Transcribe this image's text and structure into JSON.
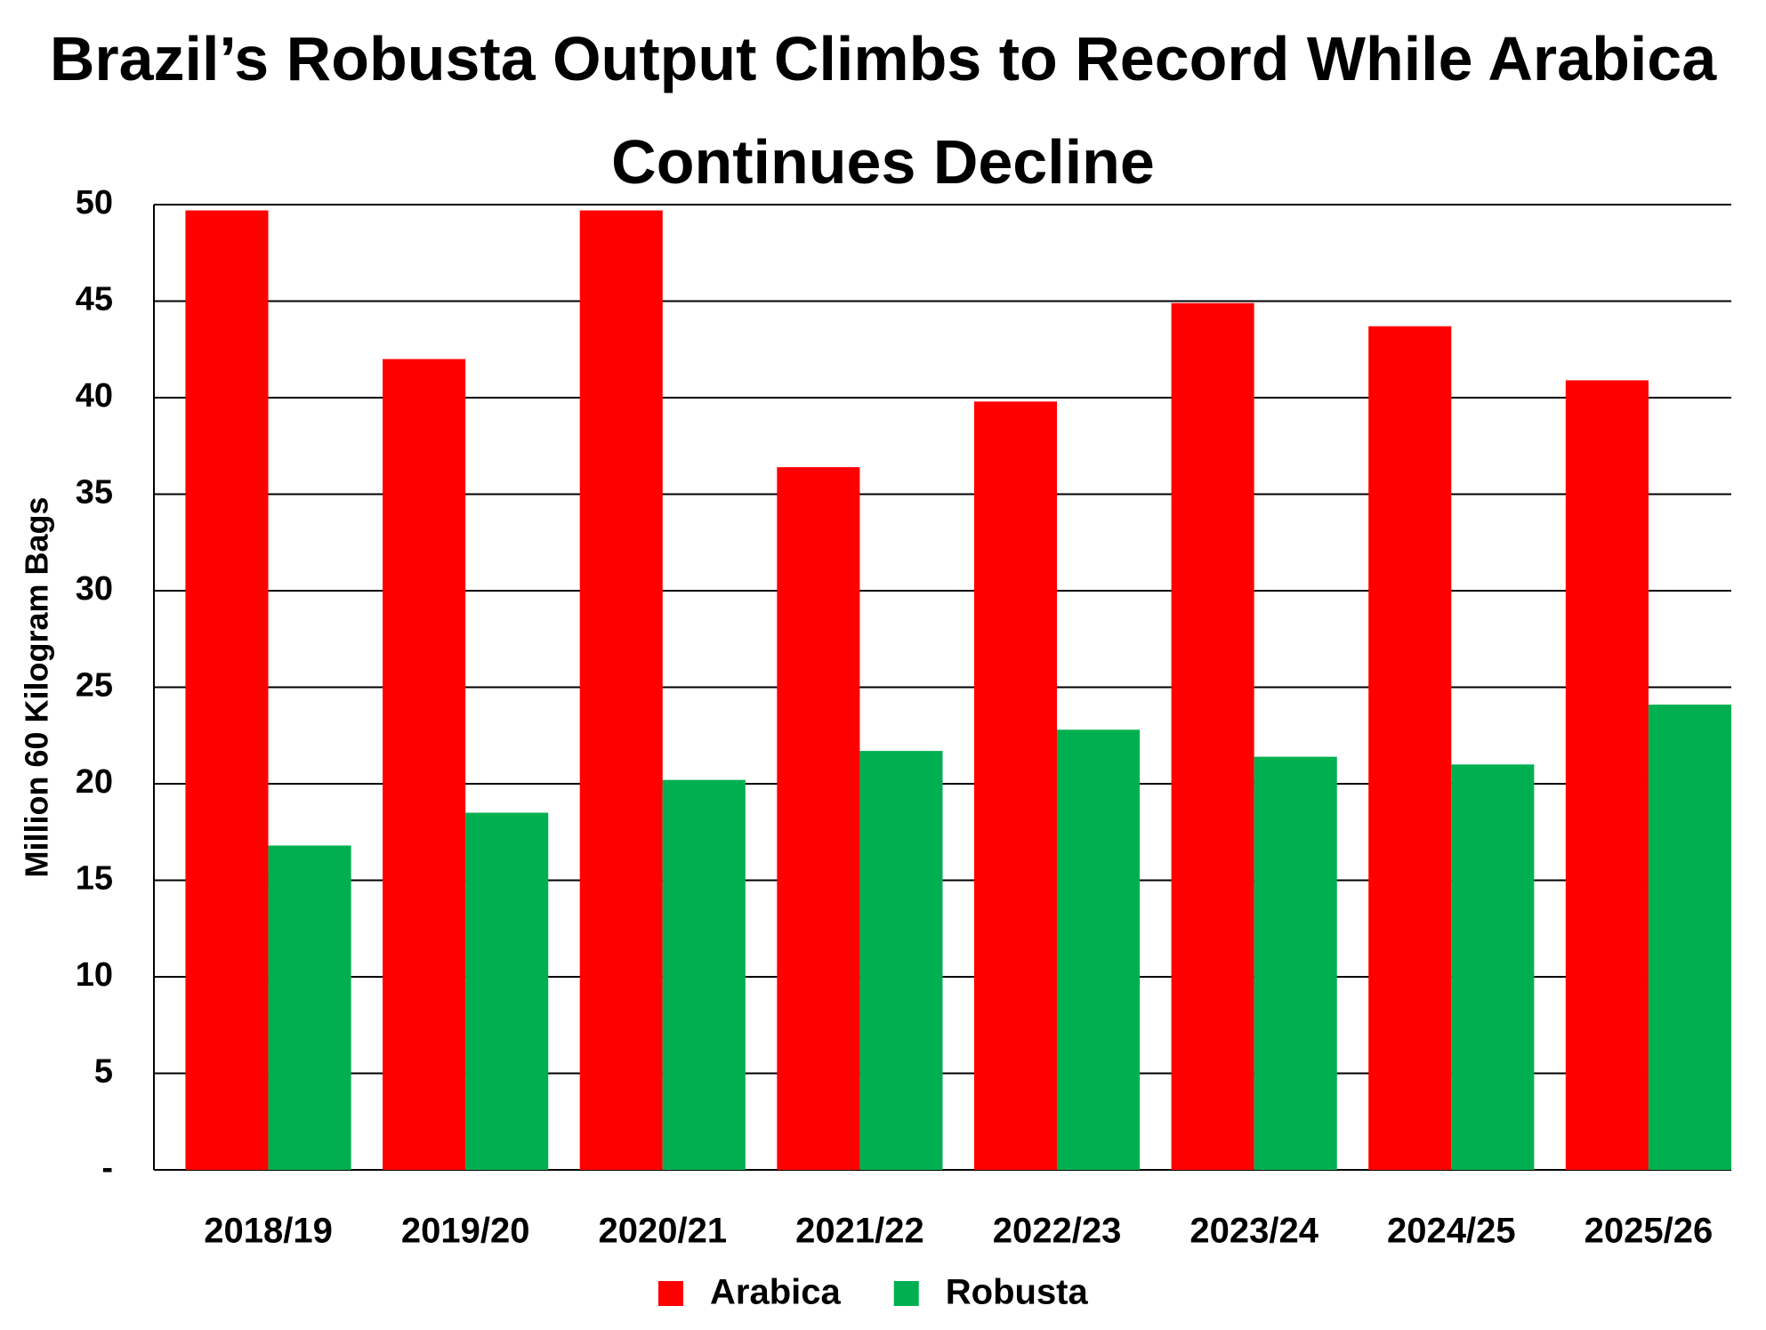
{
  "chart_data": {
    "type": "bar",
    "title": "Brazil’s Robusta Output Climbs to Record While Arabica Continues Decline",
    "y_label": "Million 60 Kilogram Bags",
    "categories": [
      "2018/19",
      "2019/20",
      "2020/21",
      "2021/22",
      "2022/23",
      "2023/24",
      "2024/25",
      "2025/26"
    ],
    "series": [
      {
        "name": "Arabica",
        "color": "#ff0000",
        "values": [
          49.7,
          42.0,
          49.7,
          36.4,
          39.8,
          44.9,
          43.7,
          40.9
        ]
      },
      {
        "name": "Robusta",
        "color": "#00b050",
        "values": [
          16.8,
          18.5,
          20.2,
          21.7,
          22.8,
          21.4,
          21.0,
          24.1
        ]
      }
    ],
    "ylim": [
      0,
      50
    ],
    "yticks": [
      {
        "value": 0,
        "label": "-"
      },
      5,
      10,
      15,
      20,
      25,
      30,
      35,
      40,
      45,
      50
    ],
    "grid": true,
    "legend": "bottom"
  }
}
